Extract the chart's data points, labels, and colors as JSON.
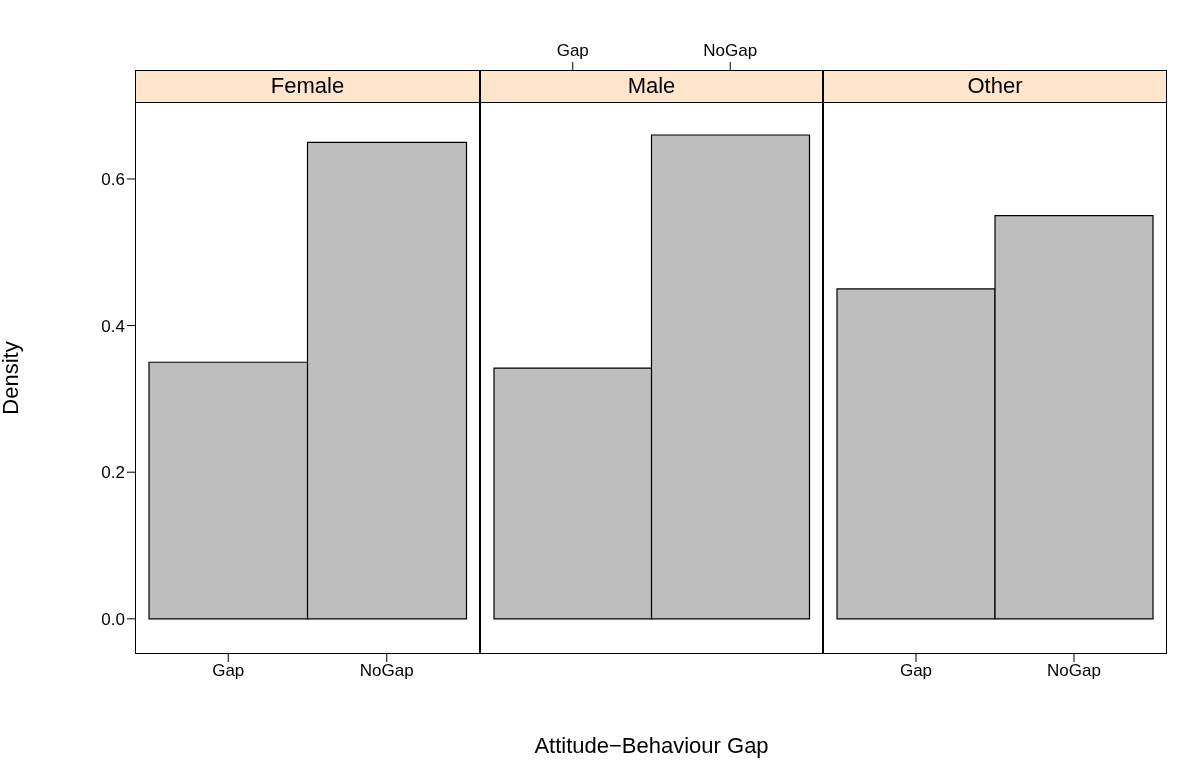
{
  "chart_data": [
    {
      "type": "bar",
      "title": "Female",
      "ylabel": "Density",
      "categories": [
        "Gap",
        "NoGap"
      ],
      "values": [
        0.35,
        0.65
      ],
      "color": "#bebebe",
      "ylim": [
        -0.048,
        0.705
      ],
      "yticks": [
        {
          "value": 0,
          "label": "0.0"
        },
        {
          "value": 0.2,
          "label": "0.2"
        },
        {
          "value": 0.4,
          "label": "0.4"
        },
        {
          "value": 0.6,
          "label": "0.6"
        }
      ]
    },
    {
      "type": "bar",
      "title": "Male",
      "xlabel": "Attitude−Behaviour Gap",
      "categories": [
        "Gap",
        "NoGap"
      ],
      "values": [
        0.342,
        0.66
      ],
      "color": "#bebebe",
      "ylim": [
        -0.048,
        0.705
      ],
      "tick_labels": "x"
    },
    {
      "type": "bar",
      "title": "Other",
      "categories": [
        "Gap",
        "NoGap"
      ],
      "values": [
        0.45,
        0.55
      ],
      "color": "#bebebe",
      "ylim": [
        -0.048,
        0.705
      ],
      "yticks": [
        {
          "value": 0,
          "label": null
        },
        {
          "value": 0.2,
          "label": null
        },
        {
          "value": 0.4,
          "label": null
        },
        {
          "value": 0.6,
          "label": null
        }
      ],
      "tick_labels": "x"
    }
  ]
}
